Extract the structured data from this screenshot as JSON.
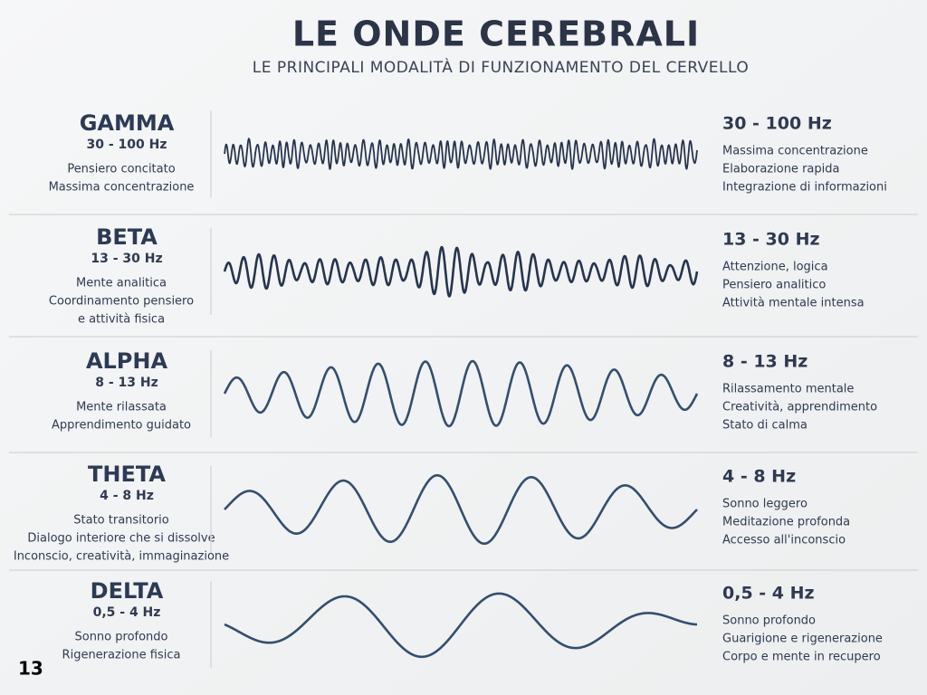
{
  "title": "LE ONDE CEREBRALI",
  "subtitle": "LE PRINCIPALI MODALITÀ DI FUNZIONAMENTO DEL CERVELLO",
  "page_number": "13",
  "bands": [
    {
      "name": "GAMMA",
      "range": "30 - 100 Hz",
      "left_lines": [
        "Pensiero concitato",
        "Massima concentrazione"
      ],
      "right_range": "30 - 100 Hz",
      "right_lines": [
        "Massima concentrazione",
        "Elaborazione rapida",
        "Integrazione di informazioni"
      ]
    },
    {
      "name": "BETA",
      "range": "13 - 30 Hz",
      "left_lines": [
        "Mente analitica",
        "Coordinamento pensiero",
        "e attività fisica"
      ],
      "right_range": "13 - 30 Hz",
      "right_lines": [
        "Attenzione, logica",
        "Pensiero analitico",
        "Attività mentale intensa"
      ]
    },
    {
      "name": "ALPHA",
      "range": "8 - 13 Hz",
      "left_lines": [
        "Mente rilassata",
        "Apprendimento guidato"
      ],
      "right_range": "8 - 13 Hz",
      "right_lines": [
        "Rilassamento mentale",
        "Creatività, apprendimento",
        "Stato di calma"
      ]
    },
    {
      "name": "THETA",
      "range": "4 - 8 Hz",
      "left_lines": [
        "Stato transitorio",
        "Dialogo interiore che si dissolve",
        "Inconscio, creatività, immaginazione"
      ],
      "right_range": "4 - 8 Hz",
      "right_lines": [
        "Sonno leggero",
        "Meditazione profonda",
        "Accesso all'inconscio"
      ]
    },
    {
      "name": "DELTA",
      "range": "0,5 - 4 Hz",
      "left_lines": [
        "Sonno profondo",
        "Rigenerazione fisica"
      ],
      "right_range": "0,5 - 4 Hz",
      "right_lines": [
        "Sonno profondo",
        "Guarigione e rigenerazione",
        "Corpo e mente in recupero"
      ]
    }
  ]
}
